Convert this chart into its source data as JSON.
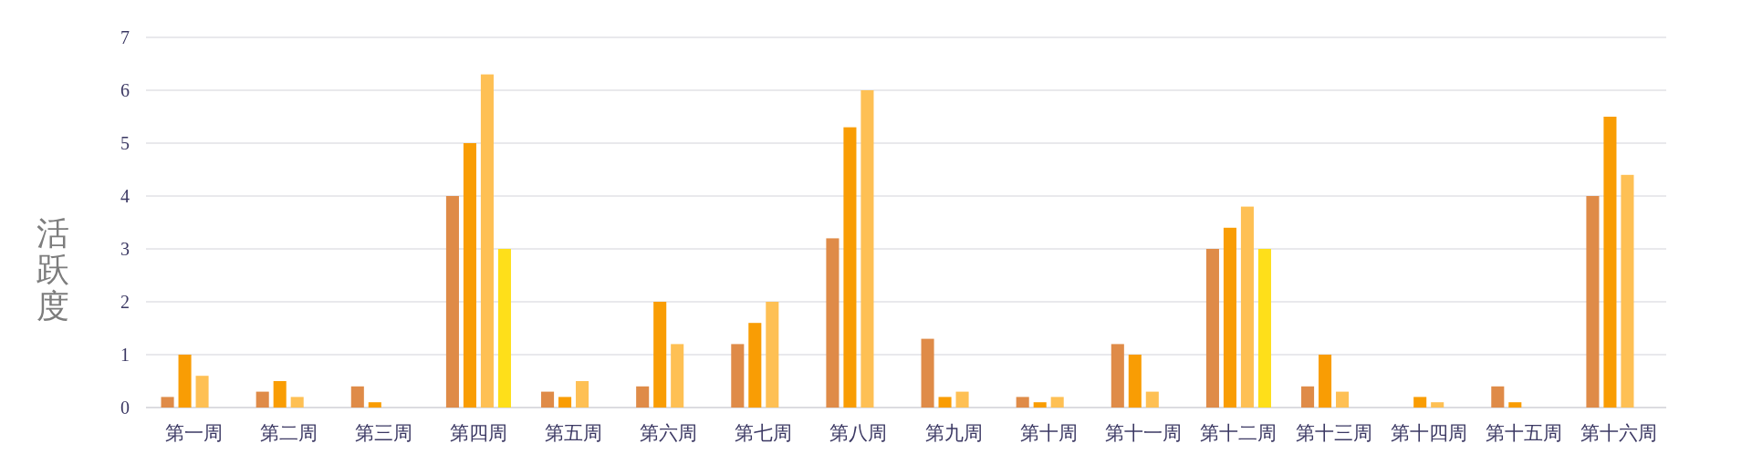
{
  "chart_data": {
    "type": "bar",
    "ylabel": "活跃度",
    "categories": [
      "第一周",
      "第二周",
      "第三周",
      "第四周",
      "第五周",
      "第六周",
      "第七周",
      "第八周",
      "第九周",
      "第十周",
      "第十一周",
      "第十二周",
      "第十三周",
      "第十四周",
      "第十五周",
      "第十六周"
    ],
    "series": [
      {
        "color": "#df8b48",
        "values": [
          0.2,
          0.3,
          0.4,
          4,
          0.3,
          0.4,
          1.2,
          3.2,
          1.3,
          0.2,
          1.2,
          3,
          0.4,
          null,
          0.4,
          4
        ]
      },
      {
        "color": "#f99d04",
        "values": [
          1,
          0.5,
          0.1,
          5,
          0.2,
          2,
          1.6,
          5.3,
          0.2,
          0.1,
          1,
          3.4,
          1,
          0.2,
          0.1,
          5.5
        ]
      },
      {
        "color": "#fec054",
        "values": [
          0.6,
          0.2,
          null,
          6.3,
          0.5,
          1.2,
          2,
          6,
          0.3,
          0.2,
          0.3,
          3.8,
          0.3,
          0.1,
          null,
          4.4
        ]
      },
      {
        "color": "#fedf1a",
        "values": [
          null,
          null,
          null,
          3,
          null,
          null,
          null,
          null,
          null,
          null,
          null,
          3,
          null,
          null,
          null,
          null
        ]
      }
    ],
    "ylim": [
      0,
      7
    ],
    "yticks": [
      0,
      1,
      2,
      3,
      4,
      5,
      6,
      7
    ],
    "grid": "y"
  }
}
